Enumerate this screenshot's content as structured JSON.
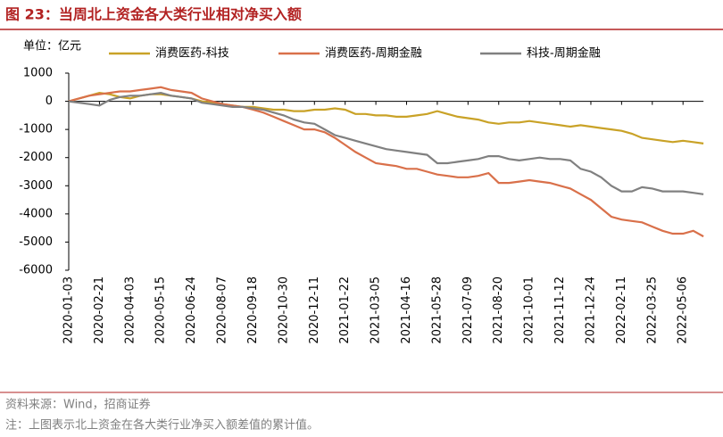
{
  "chart_data": {
    "type": "line",
    "title": "图 23：当周北上资金各大类行业相对净买入额",
    "y_label": "单位：亿元",
    "source": "资料来源：Wind，招商证券",
    "note": "注：上图表示北上资金在各大类行业净买入额差值的累计值。",
    "categories": [
      "2020-01-03",
      null,
      null,
      "2020-02-21",
      null,
      null,
      "2020-04-03",
      null,
      null,
      "2020-05-15",
      null,
      null,
      "2020-06-24",
      null,
      null,
      "2020-08-07",
      null,
      null,
      "2020-09-18",
      null,
      null,
      "2020-10-30",
      null,
      null,
      "2020-12-11",
      null,
      null,
      "2021-01-22",
      null,
      null,
      "2021-03-05",
      null,
      null,
      "2021-04-16",
      null,
      null,
      "2021-05-28",
      null,
      null,
      "2021-07-09",
      null,
      null,
      "2021-08-20",
      null,
      null,
      "2021-10-01",
      null,
      null,
      "2021-11-12",
      null,
      null,
      "2021-12-24",
      null,
      null,
      "2022-02-11",
      null,
      null,
      "2022-03-25",
      null,
      null,
      "2022-05-06",
      null,
      null
    ],
    "series": [
      {
        "name": "消费医药-科技",
        "color": "#c9a227",
        "values": [
          0,
          100,
          200,
          300,
          250,
          150,
          100,
          200,
          250,
          250,
          200,
          150,
          100,
          0,
          -50,
          -100,
          -150,
          -200,
          -200,
          -250,
          -300,
          -300,
          -350,
          -350,
          -300,
          -300,
          -250,
          -300,
          -450,
          -450,
          -500,
          -500,
          -550,
          -550,
          -500,
          -450,
          -350,
          -450,
          -550,
          -600,
          -650,
          -750,
          -800,
          -750,
          -750,
          -700,
          -750,
          -800,
          -850,
          -900,
          -850,
          -900,
          -950,
          -1000,
          -1050,
          -1150,
          -1300,
          -1350,
          -1400,
          -1450,
          -1400,
          -1450,
          -1500
        ]
      },
      {
        "name": "消费医药-周期金融",
        "color": "#d9704a",
        "values": [
          0,
          100,
          200,
          250,
          300,
          350,
          350,
          400,
          450,
          500,
          400,
          350,
          300,
          100,
          0,
          -100,
          -150,
          -200,
          -300,
          -400,
          -550,
          -700,
          -850,
          -1000,
          -1000,
          -1100,
          -1300,
          -1550,
          -1800,
          -2000,
          -2200,
          -2250,
          -2300,
          -2400,
          -2400,
          -2500,
          -2600,
          -2650,
          -2700,
          -2700,
          -2650,
          -2550,
          -2900,
          -2900,
          -2850,
          -2800,
          -2850,
          -2900,
          -3000,
          -3100,
          -3300,
          -3500,
          -3800,
          -4100,
          -4200,
          -4250,
          -4300,
          -4450,
          -4600,
          -4700,
          -4700,
          -4600,
          -4800
        ]
      },
      {
        "name": "科技-周期金融",
        "color": "#808080",
        "values": [
          0,
          -50,
          -100,
          -150,
          50,
          150,
          200,
          200,
          250,
          300,
          200,
          150,
          100,
          -50,
          -100,
          -150,
          -200,
          -200,
          -250,
          -300,
          -400,
          -500,
          -650,
          -750,
          -800,
          -1000,
          -1200,
          -1300,
          -1400,
          -1500,
          -1600,
          -1700,
          -1750,
          -1800,
          -1850,
          -1900,
          -2200,
          -2200,
          -2150,
          -2100,
          -2050,
          -1950,
          -1950,
          -2050,
          -2100,
          -2050,
          -2000,
          -2050,
          -2050,
          -2100,
          -2400,
          -2500,
          -2700,
          -3000,
          -3200,
          -3200,
          -3050,
          -3100,
          -3200,
          -3200,
          -3200,
          -3250,
          -3300
        ]
      }
    ],
    "ylim": [
      -6000,
      1000
    ],
    "yticks": [
      -6000,
      -5000,
      -4000,
      -3000,
      -2000,
      -1000,
      0,
      1000
    ]
  }
}
